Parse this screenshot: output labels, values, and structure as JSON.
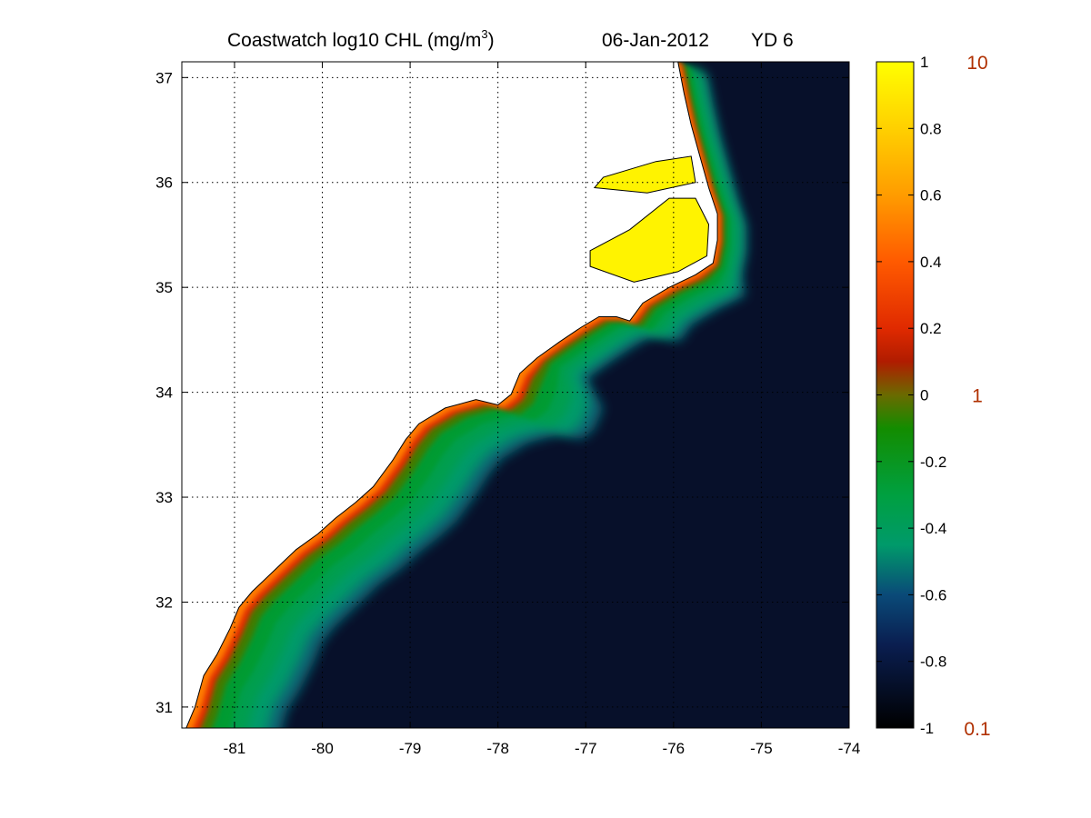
{
  "title": {
    "prefix": "Coastwatch  log10  CHL (mg/m",
    "superscript": "3",
    "suffix": ")",
    "date": "06-Jan-2012",
    "yearday": "YD 6"
  },
  "map": {
    "lon_range": [
      -81.6,
      -74
    ],
    "lat_range": [
      30.8,
      37.15
    ],
    "x_ticks": [
      -81,
      -80,
      -79,
      -78,
      -77,
      -76,
      -75,
      -74
    ],
    "y_ticks": [
      31,
      32,
      33,
      34,
      35,
      36,
      37
    ],
    "x_tick_labels": [
      "-81",
      "-80",
      "-79",
      "-78",
      "-77",
      "-76",
      "-75",
      "-74"
    ],
    "y_tick_labels": [
      "31",
      "32",
      "33",
      "34",
      "35",
      "36",
      "37"
    ],
    "grid": "dotted",
    "coastline": [
      [
        -81.55,
        30.8
      ],
      [
        -81.45,
        31.0
      ],
      [
        -81.35,
        31.3
      ],
      [
        -81.2,
        31.5
      ],
      [
        -81.05,
        31.75
      ],
      [
        -80.95,
        31.95
      ],
      [
        -80.8,
        32.1
      ],
      [
        -80.55,
        32.3
      ],
      [
        -80.3,
        32.5
      ],
      [
        -80.05,
        32.65
      ],
      [
        -79.85,
        32.8
      ],
      [
        -79.62,
        32.95
      ],
      [
        -79.42,
        33.1
      ],
      [
        -79.2,
        33.35
      ],
      [
        -79.05,
        33.55
      ],
      [
        -78.9,
        33.7
      ],
      [
        -78.6,
        33.85
      ],
      [
        -78.25,
        33.93
      ],
      [
        -78.0,
        33.88
      ],
      [
        -77.85,
        33.98
      ],
      [
        -77.75,
        34.18
      ],
      [
        -77.55,
        34.33
      ],
      [
        -77.3,
        34.48
      ],
      [
        -77.05,
        34.62
      ],
      [
        -76.85,
        34.72
      ],
      [
        -76.65,
        34.72
      ],
      [
        -76.5,
        34.68
      ],
      [
        -76.35,
        34.85
      ],
      [
        -76.05,
        35.0
      ],
      [
        -75.75,
        35.12
      ],
      [
        -75.55,
        35.23
      ],
      [
        -75.5,
        35.45
      ],
      [
        -75.5,
        35.7
      ],
      [
        -75.6,
        35.95
      ],
      [
        -75.7,
        36.25
      ],
      [
        -75.8,
        36.55
      ],
      [
        -75.88,
        36.85
      ],
      [
        -75.95,
        37.15
      ],
      [
        -81.6,
        37.15
      ],
      [
        -81.6,
        30.8
      ]
    ],
    "land_color": "#ffffff",
    "ocean_base_color": "#07102a"
  },
  "colorbar": {
    "min": -1,
    "max": 1,
    "tick_values": [
      1,
      0.8,
      0.6,
      0.4,
      0.2,
      0,
      -0.2,
      -0.4,
      -0.6,
      -0.8,
      -1
    ],
    "tick_labels": [
      "1",
      "0.8",
      "0.6",
      "0.4",
      "0.2",
      "0",
      "-0.2",
      "-0.4",
      "-0.6",
      "-0.8",
      "-1"
    ],
    "stops": [
      {
        "value": 1.0,
        "color": "#ffff00"
      },
      {
        "value": 0.8,
        "color": "#ffd000"
      },
      {
        "value": 0.6,
        "color": "#ff9c00"
      },
      {
        "value": 0.4,
        "color": "#ff5a00"
      },
      {
        "value": 0.2,
        "color": "#e02a00"
      },
      {
        "value": 0.1,
        "color": "#b01c00"
      },
      {
        "value": 0.0,
        "color": "#6a6a00"
      },
      {
        "value": -0.1,
        "color": "#138c00"
      },
      {
        "value": -0.3,
        "color": "#00a040"
      },
      {
        "value": -0.45,
        "color": "#009a6a"
      },
      {
        "value": -0.6,
        "color": "#0a4a78"
      },
      {
        "value": -0.75,
        "color": "#0a1e50"
      },
      {
        "value": -1.0,
        "color": "#000000"
      }
    ],
    "reference_labels": [
      {
        "value": 1,
        "label": "10"
      },
      {
        "value": 0,
        "label": "1"
      },
      {
        "value": -1,
        "label": "0.1"
      }
    ],
    "reference_color": "#b03000"
  }
}
